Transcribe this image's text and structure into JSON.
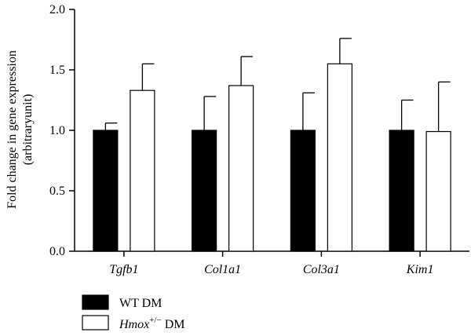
{
  "chart_data": {
    "type": "bar",
    "title": "",
    "xlabel": "",
    "ylabel_line1": "Fold change in gene expression",
    "ylabel_line2": "(arbitraryunit)",
    "ylim": [
      0,
      2.0
    ],
    "yticks": [
      "0.0",
      "0.5",
      "1.0",
      "1.5",
      "2.0"
    ],
    "categories": [
      "Tgfb1",
      "Col1a1",
      "Col3a1",
      "Kim1"
    ],
    "series": [
      {
        "name": "WT DM",
        "fill": "#000000",
        "values": [
          1.0,
          1.0,
          1.0,
          1.0
        ],
        "errors": [
          0.06,
          0.28,
          0.31,
          0.25
        ]
      },
      {
        "name": "Hmox+/− DM",
        "name_base": "Hmox",
        "name_sup": "+/−",
        "name_suffix": " DM",
        "fill": "#ffffff",
        "values": [
          1.33,
          1.37,
          1.55,
          0.99
        ],
        "errors": [
          0.22,
          0.24,
          0.21,
          0.41
        ]
      }
    ],
    "legend_position": "bottom-left",
    "grid": false
  }
}
